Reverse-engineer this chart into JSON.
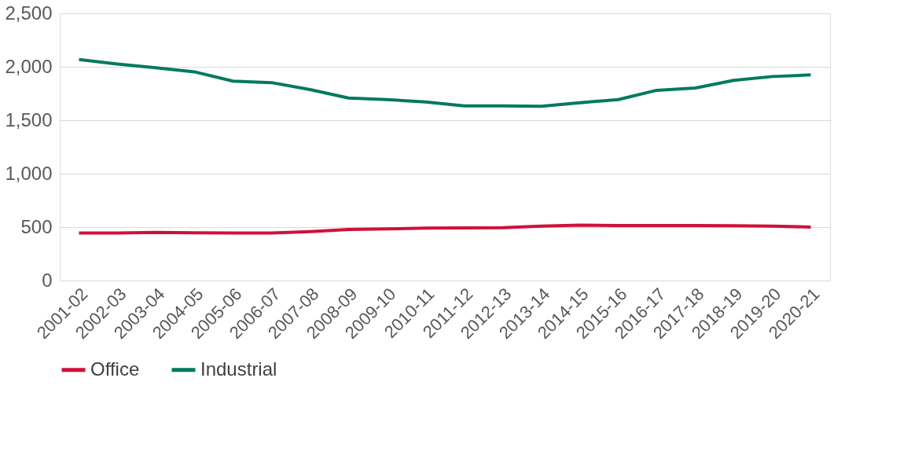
{
  "chart_data": {
    "type": "line",
    "categories": [
      "2001-02",
      "2002-03",
      "2003-04",
      "2004-05",
      "2005-06",
      "2006-07",
      "2007-08",
      "2008-09",
      "2009-10",
      "2010-11",
      "2011-12",
      "2012-13",
      "2013-14",
      "2014-15",
      "2015-16",
      "2016-17",
      "2017-18",
      "2018-19",
      "2019-20",
      "2020-21"
    ],
    "series": [
      {
        "name": "Office",
        "color": "#d0103a",
        "values": [
          445,
          445,
          450,
          447,
          445,
          445,
          458,
          478,
          483,
          490,
          493,
          495,
          510,
          518,
          515,
          515,
          515,
          512,
          510,
          500
        ]
      },
      {
        "name": "Industrial",
        "color": "#007a5e",
        "values": [
          2068,
          2025,
          1990,
          1953,
          1866,
          1852,
          1787,
          1708,
          1693,
          1671,
          1635,
          1635,
          1630,
          1664,
          1693,
          1780,
          1801,
          1873,
          1909,
          1924
        ]
      }
    ],
    "ylim": [
      0,
      2500
    ],
    "yticks": [
      0,
      {
        "value": 500,
        "label": "500"
      },
      {
        "value": 1000,
        "label": "1,000"
      },
      {
        "value": 1500,
        "label": "1,500"
      },
      {
        "value": 2000,
        "label": "2,000"
      },
      {
        "value": 2500,
        "label": "2,500"
      }
    ],
    "grid": "y",
    "legend": "bottom",
    "marker": "none",
    "line_style": "solid"
  }
}
